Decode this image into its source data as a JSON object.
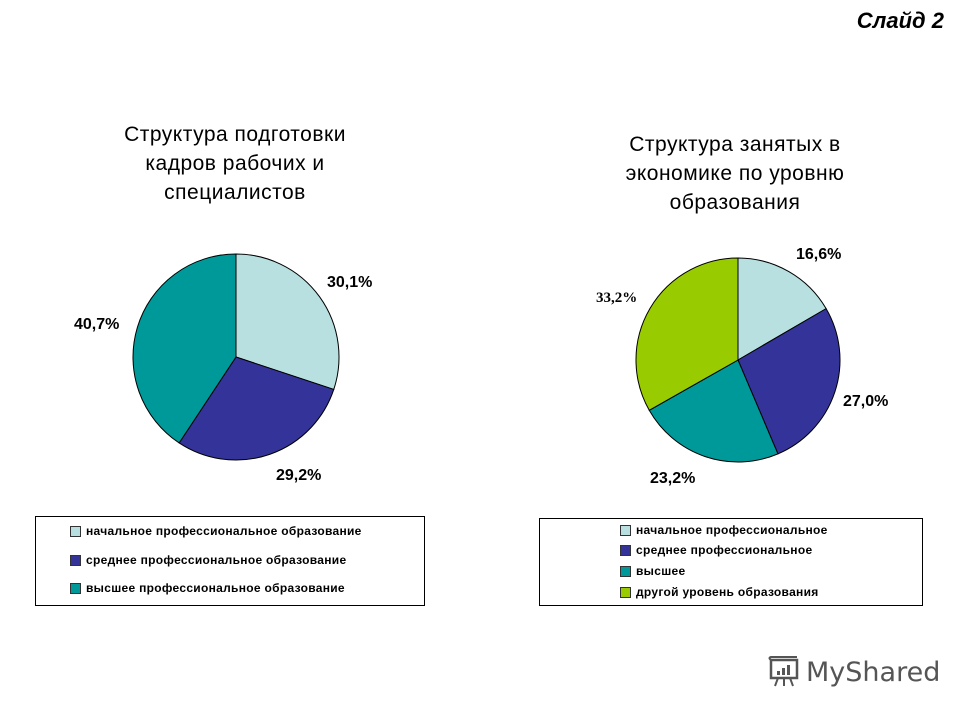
{
  "slide_label": "Слайд 2",
  "watermark": "MyShared",
  "chart_data": [
    {
      "type": "pie",
      "title": "Структура подготовки кадров рабочих и специалистов",
      "title_lines": [
        "Структура подготовки",
        "кадров рабочих и",
        "специалистов"
      ],
      "categories": [
        "начальное профессиональное образование",
        "среднее профессиональное образование",
        "высшее профессиональное образование"
      ],
      "values": [
        30.1,
        29.2,
        40.7
      ],
      "labels": [
        "30,1%",
        "29,2%",
        "40,7%"
      ],
      "colors": [
        "#b8e0e0",
        "#333399",
        "#009999"
      ],
      "legend_position": "bottom"
    },
    {
      "type": "pie",
      "title": "Структура занятых в экономике по уровню образования",
      "title_lines": [
        "Структура занятых в",
        "экономике по уровню",
        "образования"
      ],
      "categories": [
        "начальное профессиональное",
        "среднее профессиональное",
        "высшее",
        "другой уровень образования"
      ],
      "values": [
        16.6,
        27.0,
        23.2,
        33.2
      ],
      "labels": [
        "16,6%",
        "27,0%",
        "23,2%",
        "33,2%"
      ],
      "colors": [
        "#b8e0e0",
        "#333399",
        "#009999",
        "#99cc00"
      ],
      "legend_position": "bottom"
    }
  ]
}
